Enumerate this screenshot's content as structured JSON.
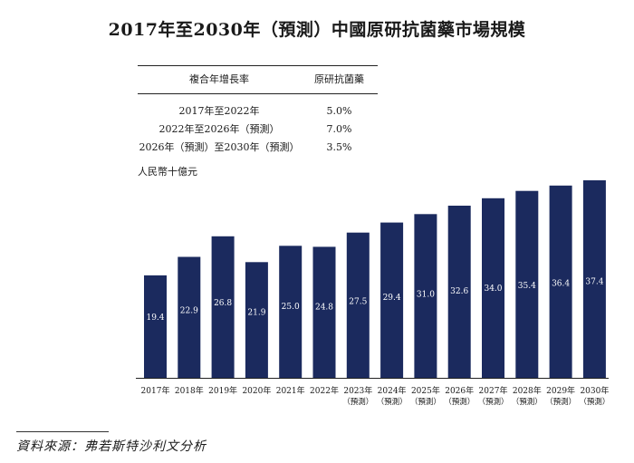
{
  "title": "2017年至2030年（預測）中國原研抗菌藥市場規模",
  "cagr_table": {
    "headers": [
      "複合年增長率",
      "原研抗菌藥"
    ],
    "rows": [
      [
        "2017年至2022年",
        "5.0%"
      ],
      [
        "2022年至2026年（預測）",
        "7.0%"
      ],
      [
        "2026年（預測）至2030年（預測）",
        "3.5%"
      ]
    ]
  },
  "unit_label": "人民幣十億元",
  "source": "資料來源：弗若斯特沙利文分析",
  "colors": {
    "bar": "#1b2a5e",
    "bar_label": "#ffffff",
    "axis": "#222222"
  },
  "chart_data": {
    "type": "bar",
    "categories": [
      "2017年",
      "2018年",
      "2019年",
      "2020年",
      "2021年",
      "2022年",
      "2023年",
      "2024年",
      "2025年",
      "2026年",
      "2027年",
      "2028年",
      "2029年",
      "2030年"
    ],
    "category_sublabels": [
      "",
      "",
      "",
      "",
      "",
      "",
      "（預測）",
      "（預測）",
      "（預測）",
      "（預測）",
      "（預測）",
      "（預測）",
      "（預測）",
      "（預測）"
    ],
    "values": [
      19.4,
      22.9,
      26.8,
      21.9,
      25.0,
      24.8,
      27.5,
      29.4,
      31.0,
      32.6,
      34.0,
      35.4,
      36.4,
      37.4
    ],
    "value_labels": [
      "19.4",
      "22.9",
      "26.8",
      "21.9",
      "25.0",
      "24.8",
      "27.5",
      "29.4",
      "31.0",
      "32.6",
      "34.0",
      "35.4",
      "36.4",
      "37.4"
    ],
    "ylabel": "人民幣十億元",
    "ylim": [
      0,
      37.4
    ],
    "grid": false,
    "legend": false
  }
}
